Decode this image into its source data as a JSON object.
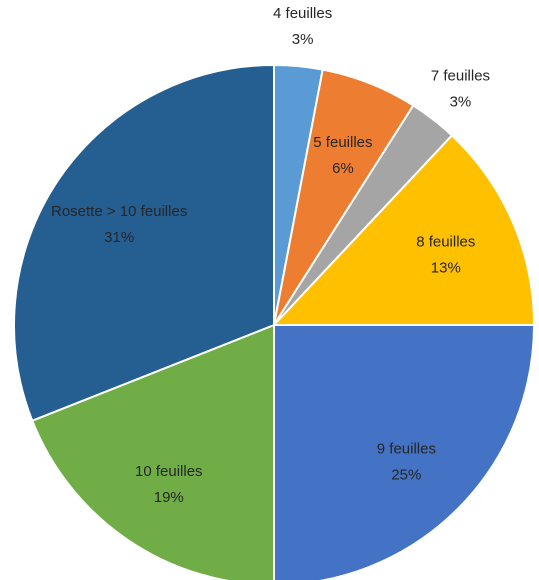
{
  "chart_data": {
    "type": "pie",
    "categories": [
      "4 feuilles",
      "5 feuilles",
      "7 feuilles",
      "8 feuilles",
      "9 feuilles",
      "10 feuilles",
      "Rosette > 10 feuilles"
    ],
    "values": [
      3,
      6,
      3,
      13,
      25,
      19,
      31
    ],
    "value_labels": [
      "3%",
      "6%",
      "3%",
      "13%",
      "25%",
      "19%",
      "31%"
    ],
    "colors": [
      "#5b9bd5",
      "#ed7d31",
      "#a5a5a5",
      "#ffc000",
      "#4472c4",
      "#70ad47",
      "#255e91"
    ]
  }
}
